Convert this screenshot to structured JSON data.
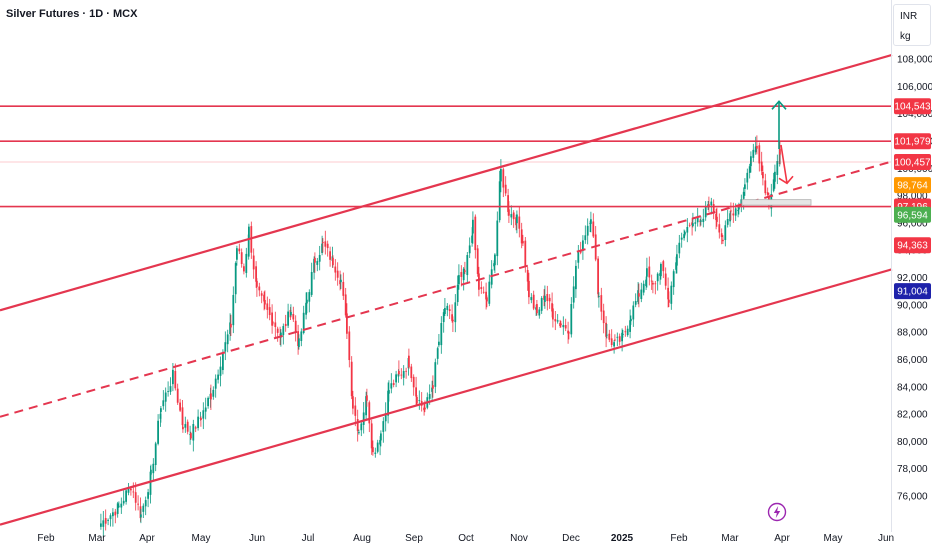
{
  "header": {
    "title": "Silver Futures · 1D · MCX"
  },
  "currency": {
    "line1": "INR",
    "line2": "kg"
  },
  "colors": {
    "up": "#089981",
    "down": "#f23645",
    "channel": "#e4364f",
    "tag_red": "#f23645",
    "tag_orange": "#ff9800",
    "tag_green": "#4caf50",
    "tag_blue": "#1e22aa"
  },
  "chart_data": {
    "type": "candlestick",
    "title": "Silver Futures · 1D · MCX",
    "x_ticks": [
      "Feb",
      "Mar",
      "Apr",
      "May",
      "Jun",
      "Jul",
      "Aug",
      "Sep",
      "Oct",
      "Nov",
      "Dec",
      "2025",
      "Feb",
      "Mar",
      "Apr",
      "May",
      "Jun"
    ],
    "y_ticks": [
      76000,
      78000,
      80000,
      82000,
      84000,
      86000,
      88000,
      90000,
      92000,
      94000,
      96000,
      98000,
      100000,
      102000,
      104000,
      106000,
      108000
    ],
    "y_tick_labels": [
      "76,000",
      "78,000",
      "80,000",
      "82,000",
      "84,000",
      "86,000",
      "88,000",
      "90,000",
      "92,000",
      "94,000",
      "96,000",
      "98,000",
      "100,000",
      "102,000",
      "104,000",
      "106,000",
      "108,000"
    ],
    "ylim": [
      74000,
      110000
    ],
    "price_tags": [
      {
        "value": 104543,
        "label": "104,543",
        "color": "red"
      },
      {
        "value": 101979,
        "label": "101,979",
        "color": "red"
      },
      {
        "value": 100457,
        "label": "100,457",
        "color": "red"
      },
      {
        "value": 98764,
        "label": "98,764",
        "color": "orange"
      },
      {
        "value": 97196,
        "label": "97,196",
        "color": "red"
      },
      {
        "value": 96594,
        "label": "96,594",
        "color": "green"
      },
      {
        "value": 94363,
        "label": "94,363",
        "color": "red"
      },
      {
        "value": 91004,
        "label": "91,004",
        "color": "blue"
      }
    ],
    "horizontal_levels": [
      104543,
      101979,
      97196
    ],
    "channel": {
      "upper": [
        [
          0,
          89600
        ],
        [
          892,
          108300
        ]
      ],
      "middle_dashed": [
        [
          0,
          81800
        ],
        [
          892,
          100500
        ]
      ],
      "lower": [
        [
          0,
          73900
        ],
        [
          892,
          92600
        ]
      ]
    },
    "candle_points": [
      [
        100,
        74000
      ],
      [
        118,
        75200
      ],
      [
        130,
        76800
      ],
      [
        140,
        74600
      ],
      [
        150,
        77500
      ],
      [
        160,
        82500
      ],
      [
        172,
        84800
      ],
      [
        182,
        81200
      ],
      [
        190,
        80600
      ],
      [
        200,
        81800
      ],
      [
        210,
        83400
      ],
      [
        222,
        86500
      ],
      [
        230,
        88500
      ],
      [
        236,
        94200
      ],
      [
        243,
        92500
      ],
      [
        248,
        95500
      ],
      [
        256,
        91000
      ],
      [
        264,
        89800
      ],
      [
        272,
        88800
      ],
      [
        280,
        87800
      ],
      [
        290,
        89600
      ],
      [
        298,
        87100
      ],
      [
        306,
        90400
      ],
      [
        314,
        93300
      ],
      [
        322,
        94400
      ],
      [
        332,
        93200
      ],
      [
        340,
        91800
      ],
      [
        346,
        88200
      ],
      [
        352,
        82600
      ],
      [
        358,
        80800
      ],
      [
        366,
        83300
      ],
      [
        372,
        79100
      ],
      [
        380,
        80600
      ],
      [
        388,
        83800
      ],
      [
        398,
        84800
      ],
      [
        408,
        85800
      ],
      [
        416,
        83200
      ],
      [
        424,
        82300
      ],
      [
        432,
        84200
      ],
      [
        438,
        87300
      ],
      [
        444,
        89800
      ],
      [
        452,
        88800
      ],
      [
        458,
        91800
      ],
      [
        464,
        92300
      ],
      [
        472,
        95800
      ],
      [
        478,
        91200
      ],
      [
        486,
        90300
      ],
      [
        494,
        93800
      ],
      [
        500,
        99800
      ],
      [
        508,
        96800
      ],
      [
        516,
        96200
      ],
      [
        522,
        94600
      ],
      [
        528,
        90800
      ],
      [
        536,
        89300
      ],
      [
        544,
        90800
      ],
      [
        552,
        89300
      ],
      [
        560,
        88600
      ],
      [
        568,
        88300
      ],
      [
        575,
        92800
      ],
      [
        582,
        94800
      ],
      [
        590,
        96600
      ],
      [
        598,
        90600
      ],
      [
        606,
        87600
      ],
      [
        614,
        87100
      ],
      [
        622,
        87600
      ],
      [
        630,
        89300
      ],
      [
        638,
        90800
      ],
      [
        646,
        92300
      ],
      [
        652,
        91300
      ],
      [
        660,
        92800
      ],
      [
        668,
        90300
      ],
      [
        676,
        93800
      ],
      [
        684,
        95300
      ],
      [
        692,
        96300
      ],
      [
        700,
        95800
      ],
      [
        708,
        97600
      ],
      [
        716,
        96300
      ],
      [
        722,
        94800
      ],
      [
        730,
        96800
      ],
      [
        738,
        97300
      ],
      [
        744,
        98800
      ],
      [
        750,
        100800
      ],
      [
        756,
        101800
      ],
      [
        762,
        99300
      ],
      [
        768,
        97600
      ],
      [
        774,
        99800
      ],
      [
        779,
        101000
      ]
    ],
    "annotations": {
      "up_arrow": {
        "x": 779,
        "from": 101400,
        "to": 104900
      },
      "down_arrow": {
        "from_x": 781,
        "from_y": 101700,
        "to_x": 787,
        "to_y": 98900
      },
      "zone": {
        "x_from": 742,
        "x_to": 811,
        "from": 97300,
        "to": 97700
      }
    },
    "grid": false,
    "legend": "none"
  }
}
